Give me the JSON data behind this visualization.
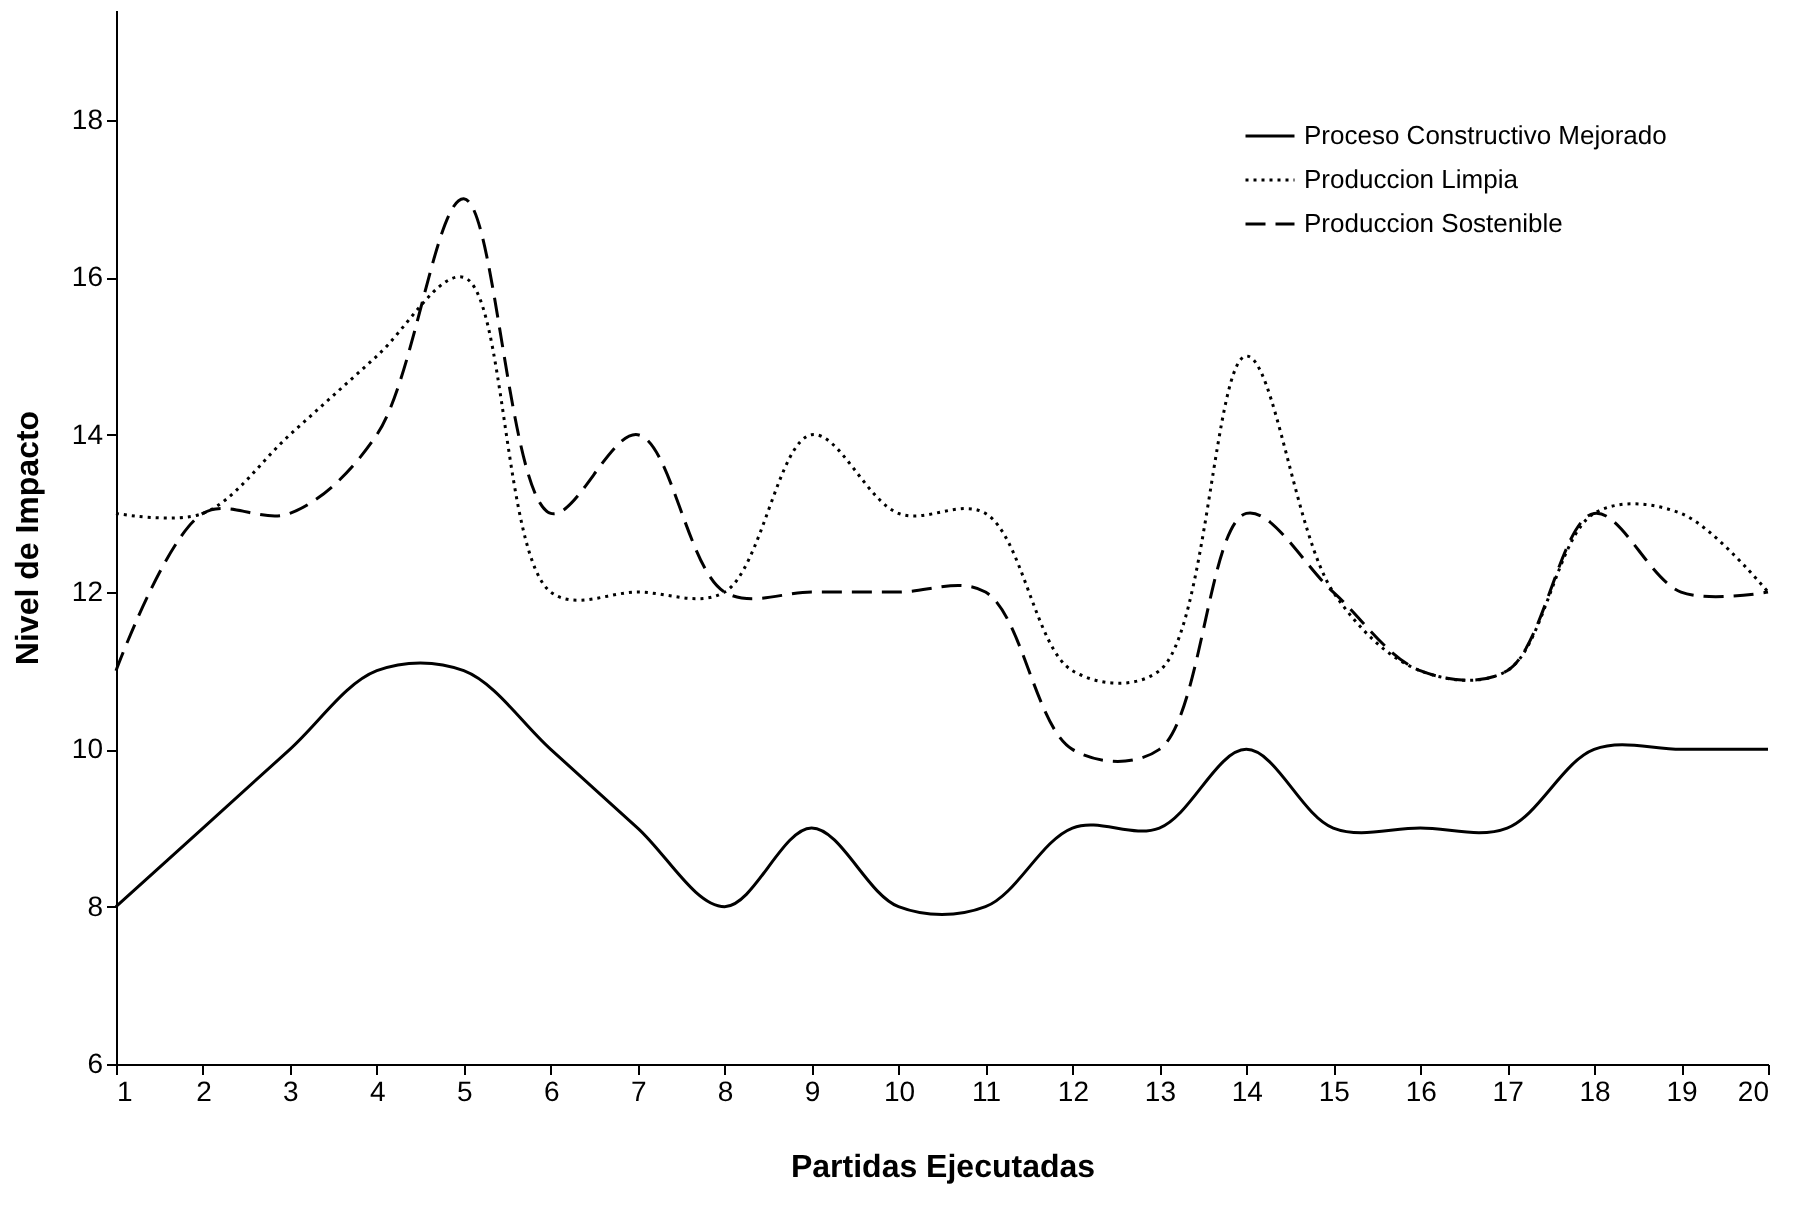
{
  "chart_data": {
    "type": "line",
    "xlabel": "Partidas Ejecutadas",
    "ylabel": "Nivel de Impacto",
    "x": [
      1,
      2,
      3,
      4,
      5,
      6,
      7,
      8,
      9,
      10,
      11,
      12,
      13,
      14,
      15,
      16,
      17,
      18,
      19,
      20
    ],
    "xlim": [
      1,
      20
    ],
    "xticks": [
      1,
      2,
      3,
      4,
      5,
      6,
      7,
      8,
      9,
      10,
      11,
      12,
      13,
      14,
      15,
      16,
      17,
      18,
      19,
      20
    ],
    "ylim": [
      6,
      19.4
    ],
    "yticks": [
      6,
      8,
      10,
      12,
      14,
      16,
      18
    ],
    "grid": false,
    "legend": "top right",
    "marker": "none",
    "series": [
      {
        "name": "Proceso Constructivo Mejorado",
        "color": "#000000",
        "line_style": "solid",
        "values": [
          8,
          9,
          10,
          11,
          11,
          10,
          9,
          8,
          9,
          8,
          8,
          9,
          9,
          10,
          9,
          9,
          9,
          10,
          10,
          10
        ]
      },
      {
        "name": "Produccion Limpia",
        "color": "#000000",
        "line_style": "dotted",
        "values": [
          13,
          13,
          14,
          15,
          16,
          12,
          12,
          12,
          14,
          13,
          13,
          11,
          11,
          15,
          12,
          11,
          11,
          13,
          13,
          12
        ]
      },
      {
        "name": "Produccion Sostenible",
        "color": "#000000",
        "line_style": "dashed",
        "values": [
          11,
          13,
          13,
          14,
          17,
          13,
          14,
          12,
          12,
          12,
          12,
          10,
          10,
          13,
          12,
          11,
          11,
          13,
          12,
          12
        ]
      }
    ]
  }
}
